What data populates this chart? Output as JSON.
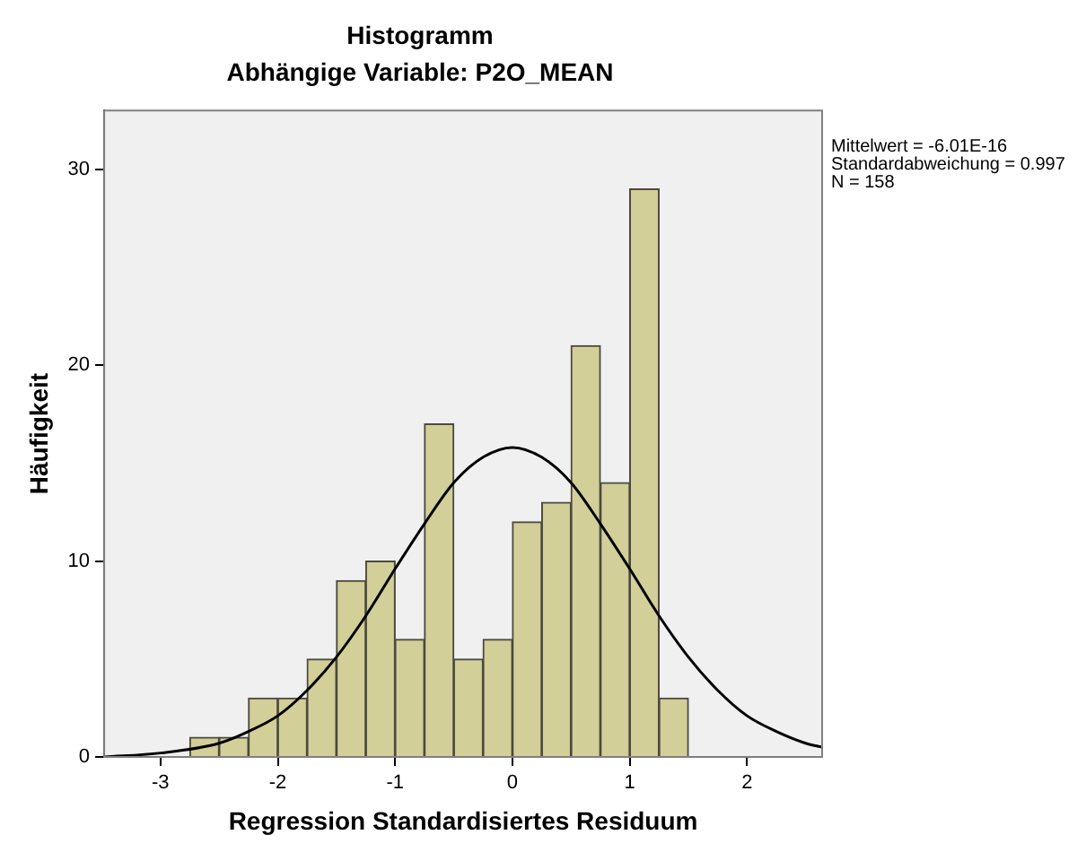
{
  "chart_data": {
    "type": "histogram",
    "title": "Histogramm",
    "subtitle": "Abhängige Variable: P2O_MEAN",
    "xlabel": "Regression Standardisiertes Residuum",
    "ylabel": "Häufigkeit",
    "bins": [
      -2.75,
      -2.5,
      -2.25,
      -2,
      -1.75,
      -1.5,
      -1.25,
      -1,
      -0.75,
      -0.5,
      -0.25,
      0,
      0.25,
      0.5,
      0.75,
      1,
      1.25,
      1.5
    ],
    "values": [
      1,
      1,
      3,
      3,
      5,
      9,
      10,
      6,
      17,
      5,
      6,
      12,
      13,
      21,
      14,
      29,
      3
    ],
    "color": "#d3cf98",
    "series": [
      {
        "type": "line",
        "color": "#000000",
        "x": [
          -3.48,
          -3,
          -2.5,
          -2.25,
          -2,
          -1.75,
          -1.5,
          -1.25,
          -1,
          -0.75,
          -0.5,
          -0.25,
          0,
          0.25,
          0.5,
          0.75,
          1,
          1.25,
          1.5,
          1.75,
          2,
          2.25,
          2.5,
          2.64
        ],
        "values": [
          0.0,
          0.2,
          0.7,
          1.3,
          2.1,
          3.4,
          5.1,
          7.2,
          9.6,
          11.9,
          14.0,
          15.3,
          15.8,
          15.3,
          14.0,
          11.9,
          9.6,
          7.2,
          5.1,
          3.4,
          2.1,
          1.3,
          0.7,
          0.5
        ]
      }
    ],
    "xlim": [
      -3.48,
      2.64
    ],
    "xticks": [
      -3,
      -2,
      -1,
      0,
      1,
      2
    ],
    "ylim": [
      0,
      33
    ],
    "yticks": [
      0,
      10,
      20,
      30
    ],
    "grid": false,
    "legend": false,
    "annotations": [
      "Mittelwert = -6.01E-16",
      "Standardabweichung = 0.997",
      "N = 158"
    ]
  }
}
